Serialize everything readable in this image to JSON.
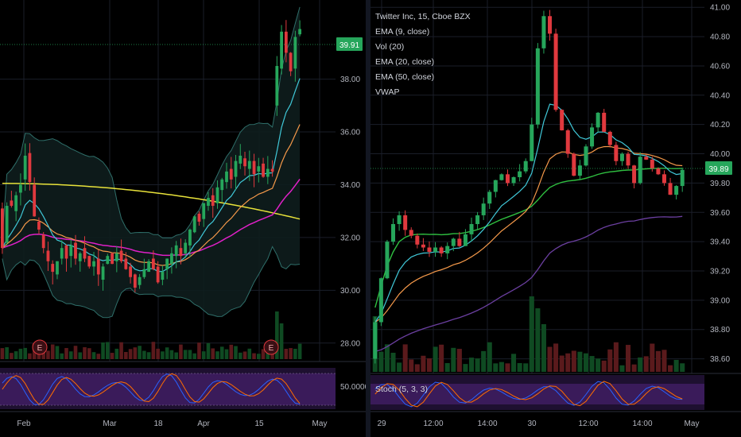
{
  "left_chart": {
    "price_axis": {
      "ticks": [
        "38.00",
        "36.00",
        "34.00",
        "32.00",
        "30.00",
        "28.00"
      ],
      "last_price": "39.91",
      "last_price_color": "#26a65b",
      "ylim": [
        27.3,
        41.0
      ]
    },
    "time_axis": {
      "ticks": [
        "Feb",
        "Mar",
        "18",
        "Apr",
        "15",
        "May"
      ]
    },
    "earnings_markers": [
      "E",
      "E"
    ],
    "stoch_axis": {
      "ticks": [
        "50.0000"
      ]
    }
  },
  "right_chart": {
    "legend": {
      "title": "Twitter Inc, 15, Cboe BZX",
      "studies": [
        "EMA (9, close)",
        "Vol (20)",
        "EMA (20, close)",
        "EMA (50, close)",
        "VWAP"
      ]
    },
    "price_axis": {
      "ticks": [
        "41.00",
        "40.80",
        "40.60",
        "40.40",
        "40.20",
        "40.00",
        "39.80",
        "39.60",
        "39.40",
        "39.20",
        "39.00",
        "38.80",
        "38.60"
      ],
      "last_price": "39.89",
      "last_price_color": "#26a65b",
      "ylim": [
        38.5,
        41.05
      ]
    },
    "time_axis": {
      "ticks": [
        "29",
        "12:00",
        "14:00",
        "30",
        "12:00",
        "14:00",
        "May"
      ]
    },
    "stoch_label": "Stoch (5, 3, 3)"
  },
  "colors": {
    "up": "#26a65b",
    "down": "#e0393e",
    "ema9": "#40c8d8",
    "ema20": "#f5994a",
    "ema50": "#6b3fa0",
    "vwap": "#2fbf40",
    "left_slow": "#e8e23a",
    "left_mid": "#e020c8"
  },
  "chart_data": [
    {
      "type": "candlestick",
      "x": [
        "Jan 24",
        "Jan 25",
        "Jan 28",
        "Jan 29",
        "Jan 30",
        "Jan 31",
        "Feb 1",
        "Feb 4",
        "Feb 5",
        "Feb 6",
        "Feb 7",
        "Feb 8",
        "Feb 11",
        "Feb 12",
        "Feb 13",
        "Feb 14",
        "Feb 15",
        "Feb 19",
        "Feb 20",
        "Feb 21",
        "Feb 22",
        "Feb 25",
        "Feb 26",
        "Feb 27",
        "Feb 28",
        "Mar 1",
        "Mar 4",
        "Mar 5",
        "Mar 6",
        "Mar 7",
        "Mar 8",
        "Mar 11",
        "Mar 12",
        "Mar 13",
        "Mar 14",
        "Mar 15",
        "Mar 18",
        "Mar 19",
        "Mar 20",
        "Mar 21",
        "Mar 22",
        "Mar 25",
        "Mar 26",
        "Mar 27",
        "Mar 28",
        "Mar 29",
        "Apr 1",
        "Apr 2",
        "Apr 3",
        "Apr 4",
        "Apr 5",
        "Apr 8",
        "Apr 9",
        "Apr 10",
        "Apr 11",
        "Apr 12",
        "Apr 15",
        "Apr 16",
        "Apr 17",
        "Apr 18",
        "Apr 22",
        "Apr 23",
        "Apr 24",
        "Apr 25",
        "Apr 26",
        "Apr 29"
      ],
      "open": [
        33.1,
        31.8,
        33.4,
        33.0,
        33.7,
        34.2,
        35.2,
        34.0,
        32.6,
        32.1,
        31.5,
        31.0,
        30.6,
        31.2,
        31.7,
        31.3,
        31.8,
        31.1,
        31.6,
        31.3,
        30.9,
        31.2,
        30.4,
        31.0,
        31.4,
        31.1,
        31.5,
        31.2,
        30.9,
        30.6,
        30.2,
        30.5,
        30.7,
        31.2,
        30.9,
        30.4,
        30.8,
        31.0,
        31.3,
        31.6,
        31.4,
        31.7,
        32.2,
        32.9,
        32.7,
        33.2,
        33.6,
        33.3,
        33.8,
        34.1,
        34.6,
        34.3,
        34.8,
        35.0,
        34.6,
        34.9,
        34.5,
        34.8,
        34.3,
        34.6,
        37.0,
        38.4,
        39.8,
        39.0,
        38.4,
        39.7
      ],
      "close": [
        31.6,
        33.2,
        33.2,
        33.6,
        34.0,
        35.1,
        34.1,
        32.8,
        32.3,
        31.6,
        31.1,
        30.7,
        31.1,
        31.6,
        31.2,
        31.7,
        31.2,
        31.4,
        31.2,
        30.9,
        31.1,
        30.6,
        30.9,
        31.3,
        31.0,
        31.4,
        31.1,
        30.8,
        30.5,
        30.1,
        30.5,
        30.8,
        31.1,
        30.8,
        30.3,
        30.7,
        31.2,
        31.4,
        31.7,
        31.3,
        31.8,
        32.3,
        32.8,
        32.6,
        33.3,
        33.5,
        33.2,
        33.9,
        34.2,
        34.5,
        34.2,
        34.9,
        35.1,
        34.7,
        34.9,
        34.4,
        34.7,
        34.3,
        34.6,
        34.5,
        38.5,
        39.8,
        39.0,
        38.3,
        39.6,
        39.9
      ],
      "series_overlays": [
        "EMA (9)",
        "EMA (20)",
        "EMA (50)",
        "Bollinger Bands"
      ]
    },
    {
      "type": "candlestick",
      "title": "Twitter Inc, 15, Cboe BZX",
      "x": [
        "29 09:30",
        "29 09:45",
        "29 10:00",
        "29 10:15",
        "29 10:30",
        "29 10:45",
        "29 11:00",
        "29 11:15",
        "29 11:30",
        "29 11:45",
        "29 12:00",
        "29 12:15",
        "29 12:30",
        "29 12:45",
        "29 13:00",
        "29 13:15",
        "29 13:30",
        "29 13:45",
        "29 14:00",
        "29 14:15",
        "29 14:30",
        "29 14:45",
        "29 15:00",
        "29 15:15",
        "29 15:30",
        "29 15:45",
        "30 09:30",
        "30 09:45",
        "30 10:00",
        "30 10:15",
        "30 10:30",
        "30 10:45",
        "30 11:00",
        "30 11:15",
        "30 11:30",
        "30 11:45",
        "30 12:00",
        "30 12:15",
        "30 12:30",
        "30 12:45",
        "30 13:00",
        "30 13:15",
        "30 13:30",
        "30 13:45",
        "30 14:00",
        "30 14:15",
        "30 14:30",
        "30 14:45",
        "30 15:00",
        "30 15:15",
        "30 15:30",
        "30 15:45"
      ],
      "open": [
        38.6,
        38.85,
        39.15,
        39.4,
        39.52,
        39.58,
        39.48,
        39.44,
        39.38,
        39.36,
        39.33,
        39.36,
        39.32,
        39.37,
        39.42,
        39.37,
        39.45,
        39.52,
        39.58,
        39.66,
        39.74,
        39.82,
        39.86,
        39.8,
        39.84,
        39.88,
        39.95,
        40.2,
        40.72,
        40.94,
        40.82,
        40.3,
        40.16,
        40.0,
        39.85,
        39.92,
        40.05,
        40.18,
        40.28,
        40.15,
        40.06,
        39.95,
        40.0,
        39.92,
        39.8,
        39.98,
        39.96,
        39.9,
        39.86,
        39.8,
        39.72,
        39.78
      ],
      "close": [
        38.85,
        39.15,
        39.4,
        39.52,
        39.58,
        39.48,
        39.44,
        39.38,
        39.36,
        39.33,
        39.36,
        39.32,
        39.37,
        39.42,
        39.37,
        39.45,
        39.52,
        39.58,
        39.66,
        39.74,
        39.82,
        39.86,
        39.8,
        39.84,
        39.88,
        39.95,
        40.2,
        40.72,
        40.94,
        40.82,
        40.3,
        40.16,
        40.0,
        39.85,
        39.92,
        40.05,
        40.18,
        40.28,
        40.15,
        40.06,
        39.95,
        40.0,
        39.92,
        39.8,
        39.98,
        39.96,
        39.9,
        39.86,
        39.8,
        39.72,
        39.78,
        39.89
      ],
      "ylim": [
        38.5,
        41.05
      ],
      "series_overlays": [
        "EMA (9, close)",
        "EMA (20, close)",
        "EMA (50, close)",
        "VWAP",
        "Vol (20)"
      ]
    }
  ]
}
